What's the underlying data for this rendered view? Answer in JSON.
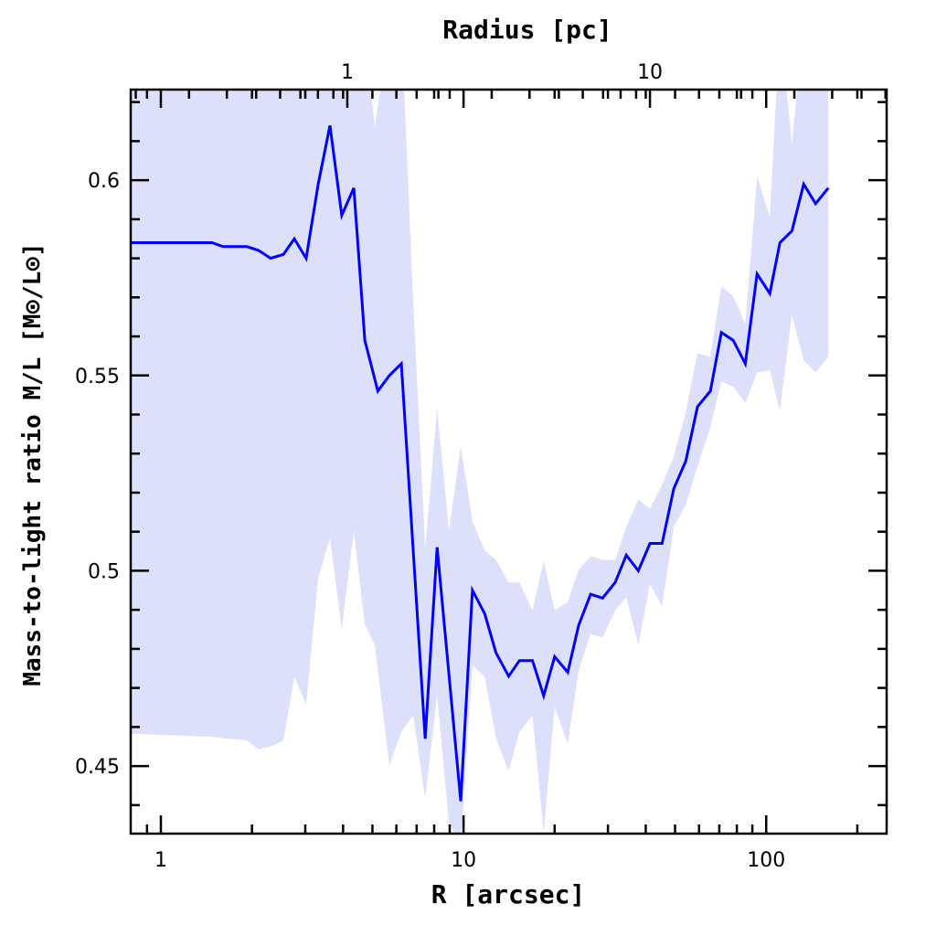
{
  "chart_data": {
    "type": "line",
    "xscale": "log",
    "xlabel": "R [arcsec]",
    "ylabel": "Mass-to-light ratio M/L [M⊙/L⊙]",
    "top_xlabel": "Radius [pc]",
    "xlim": [
      0.795,
      250
    ],
    "ylim": [
      0.4327,
      0.6232
    ],
    "pc_to_arcsec": 4.13,
    "x_ticks": [
      {
        "value": 1,
        "label": "1"
      },
      {
        "value": 10,
        "label": "10"
      },
      {
        "value": 100,
        "label": "100"
      }
    ],
    "top_ticks": [
      {
        "value": 1,
        "label": "1"
      },
      {
        "value": 10,
        "label": "10"
      }
    ],
    "y_ticks": [
      {
        "value": 0.45,
        "label": "0.45"
      },
      {
        "value": 0.5,
        "label": "0.5"
      },
      {
        "value": 0.55,
        "label": "0.55"
      },
      {
        "value": 0.6,
        "label": "0.6"
      }
    ],
    "y_minor_step": 0.01,
    "grid": false,
    "colors": {
      "line": "#0000ff",
      "band": "#dde0fb",
      "axis": "#000000"
    },
    "series": [
      {
        "name": "M/L",
        "x": [
          0.795,
          1.476,
          1.605,
          1.923,
          2.105,
          2.305,
          2.54,
          2.76,
          3.02,
          3.31,
          3.62,
          3.96,
          4.34,
          4.72,
          5.21,
          5.69,
          6.23,
          7.47,
          8.18,
          9.79,
          10.7,
          11.75,
          12.8,
          14.1,
          15.3,
          16.9,
          18.4,
          20.0,
          22.1,
          24.0,
          26.3,
          28.8,
          31.7,
          34.5,
          37.8,
          41.3,
          45.3,
          49.5,
          54.2,
          59.3,
          65.4,
          71.1,
          77.8,
          85.3,
          93.3,
          102.8,
          111.0,
          121.6,
          133.0,
          145.6,
          160.4
        ],
        "y": [
          0.584,
          0.584,
          0.583,
          0.583,
          0.582,
          0.58,
          0.581,
          0.585,
          0.58,
          0.599,
          0.614,
          0.591,
          0.598,
          0.559,
          0.546,
          0.55,
          0.553,
          0.457,
          0.506,
          0.441,
          0.495,
          0.489,
          0.479,
          0.473,
          0.477,
          0.477,
          0.468,
          0.478,
          0.474,
          0.486,
          0.494,
          0.493,
          0.497,
          0.504,
          0.5,
          0.507,
          0.507,
          0.521,
          0.528,
          0.542,
          0.546,
          0.561,
          0.559,
          0.553,
          0.576,
          0.571,
          0.584,
          0.587,
          0.599,
          0.594,
          0.598
        ]
      }
    ],
    "uncertainty_band": {
      "x": [
        0.795,
        1.476,
        1.605,
        1.923,
        2.105,
        2.305,
        2.54,
        2.76,
        3.02,
        3.31,
        3.62,
        3.96,
        4.34,
        4.72,
        5.09,
        5.69,
        6.23,
        6.82,
        7.47,
        8.18,
        8.95,
        9.79,
        10.7,
        11.75,
        12.8,
        14.1,
        15.3,
        16.9,
        18.4,
        20.0,
        22.1,
        24.0,
        26.3,
        28.8,
        31.7,
        34.5,
        37.8,
        41.3,
        45.3,
        49.5,
        54.2,
        59.3,
        65.4,
        71.1,
        77.8,
        85.3,
        93.3,
        102.8,
        111.0,
        121.6,
        133.0,
        145.6,
        160.4
      ],
      "lower": [
        0.4583,
        0.4575,
        0.4571,
        0.4566,
        0.4543,
        0.455,
        0.4566,
        0.4728,
        0.4658,
        0.4981,
        0.5084,
        0.485,
        0.5103,
        0.4862,
        0.481,
        0.4501,
        0.4588,
        0.463,
        0.4417,
        0.4681,
        0.4354,
        0.43,
        0.4759,
        0.4728,
        0.4571,
        0.4487,
        0.4588,
        0.463,
        0.433,
        0.4651,
        0.4557,
        0.4745,
        0.4838,
        0.4829,
        0.4899,
        0.4932,
        0.481,
        0.4967,
        0.4909,
        0.5112,
        0.5169,
        0.5267,
        0.5368,
        0.5485,
        0.5471,
        0.5429,
        0.5508,
        0.5513,
        0.541,
        0.5656,
        0.5539,
        0.5508,
        0.5548
      ],
      "upper": [
        0.64,
        0.64,
        0.64,
        0.64,
        0.64,
        0.64,
        0.64,
        0.64,
        0.64,
        0.64,
        0.64,
        0.64,
        0.64,
        0.64,
        0.6133,
        0.64,
        0.64,
        0.5689,
        0.5056,
        0.5415,
        0.5103,
        0.5319,
        0.5126,
        0.5052,
        0.5028,
        0.497,
        0.497,
        0.4899,
        0.5026,
        0.4899,
        0.492,
        0.5002,
        0.5037,
        0.5028,
        0.5028,
        0.5112,
        0.5183,
        0.5159,
        0.522,
        0.5293,
        0.5405,
        0.5557,
        0.5548,
        0.5728,
        0.5703,
        0.5632,
        0.6009,
        0.5906,
        0.64,
        0.6094,
        0.64,
        0.64,
        0.64
      ]
    }
  }
}
